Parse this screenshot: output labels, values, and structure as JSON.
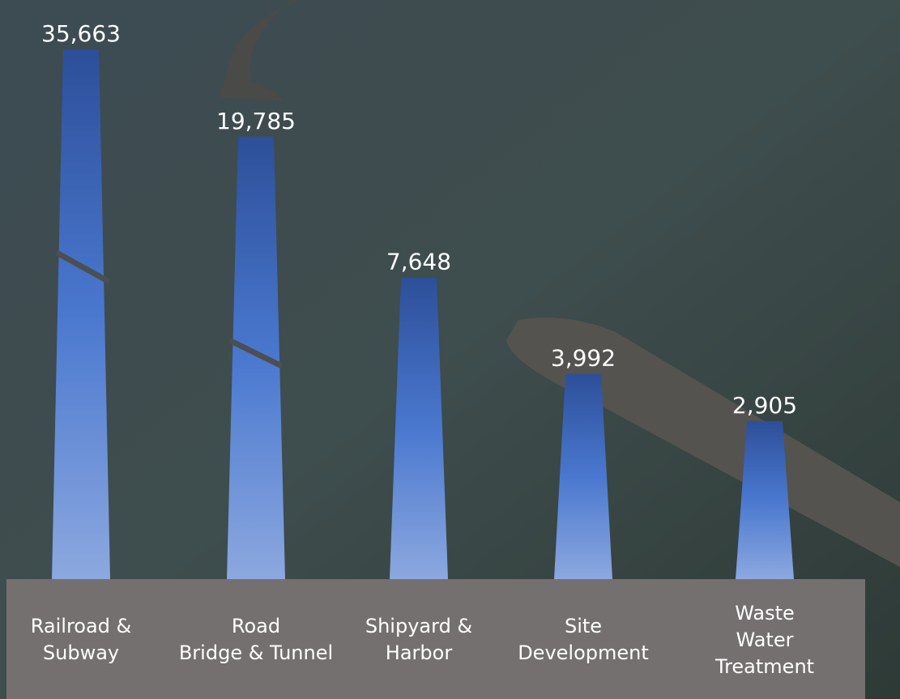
{
  "chart_data": {
    "type": "bar",
    "categories": [
      "Railroad &\nSubway",
      "Road\nBridge & Tunnel",
      "Shipyard &\nHarbor",
      "Site\nDevelopment",
      "Waste\nWater\nTreatment"
    ],
    "values": [
      35663,
      19785,
      7648,
      3992,
      2905
    ],
    "value_labels": [
      "35,663",
      "19,785",
      "7,648",
      "3,992",
      "2,905"
    ],
    "ylim": [
      1000,
      40000
    ],
    "log_scale": true,
    "color": "#3a62b4"
  }
}
